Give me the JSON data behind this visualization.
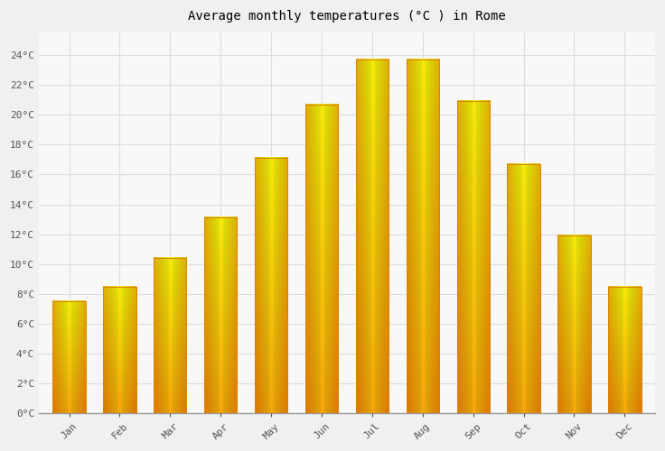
{
  "title": "Average monthly temperatures (°C ) in Rome",
  "months": [
    "Jan",
    "Feb",
    "Mar",
    "Apr",
    "May",
    "Jun",
    "Jul",
    "Aug",
    "Sep",
    "Oct",
    "Nov",
    "Dec"
  ],
  "temperatures": [
    7.5,
    8.5,
    10.4,
    13.1,
    17.1,
    20.7,
    23.7,
    23.7,
    20.9,
    16.7,
    11.9,
    8.5
  ],
  "bar_color_center": "#FFA500",
  "bar_color_edge": "#E08000",
  "bar_color_light": "#FFD070",
  "background_color": "#f0f0f0",
  "plot_bg_color": "#f8f8f8",
  "grid_color": "#dddddd",
  "ytick_labels": [
    "0°C",
    "2°C",
    "4°C",
    "6°C",
    "8°C",
    "10°C",
    "12°C",
    "14°C",
    "16°C",
    "18°C",
    "20°C",
    "22°C",
    "24°C"
  ],
  "ytick_values": [
    0,
    2,
    4,
    6,
    8,
    10,
    12,
    14,
    16,
    18,
    20,
    22,
    24
  ],
  "ylim": [
    0,
    25.5
  ],
  "title_fontsize": 10,
  "tick_fontsize": 8,
  "font_family": "monospace",
  "bar_width": 0.65
}
